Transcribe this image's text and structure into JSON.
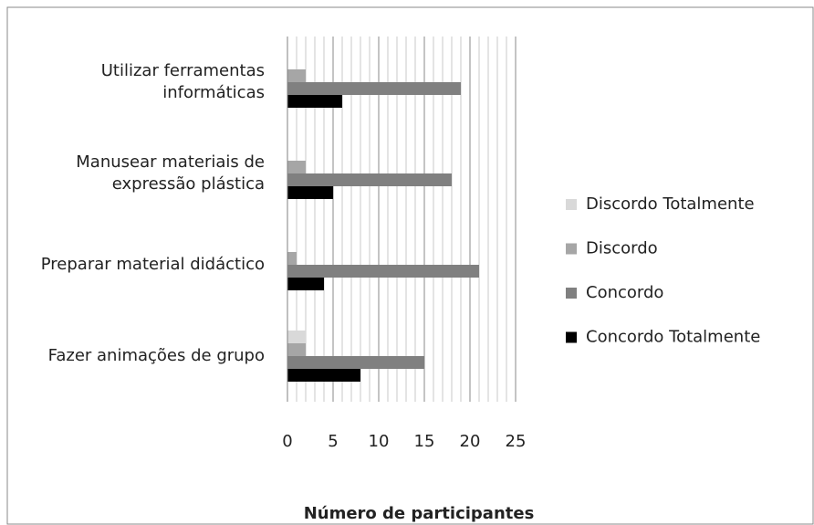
{
  "chart_data": {
    "type": "hbar",
    "categories": [
      "Utilizar ferramentas informáticas",
      "Manusear materiais de expressão plástica",
      "Preparar material didáctico",
      "Fazer animações de grupo"
    ],
    "series": [
      {
        "name": "Discordo Totalmente",
        "color": "#d9d9d9",
        "values": [
          0,
          0,
          0,
          2
        ]
      },
      {
        "name": "Discordo",
        "color": "#a6a6a6",
        "values": [
          2,
          2,
          1,
          2
        ]
      },
      {
        "name": "Concordo",
        "color": "#808080",
        "values": [
          19,
          18,
          21,
          15
        ]
      },
      {
        "name": "Concordo Totalmente",
        "color": "#000000",
        "values": [
          6,
          5,
          4,
          8
        ]
      }
    ],
    "xlabel": "Número de participantes",
    "xlim": [
      0,
      25
    ],
    "xticks": [
      0,
      5,
      10,
      15,
      20,
      25
    ],
    "grid": true,
    "minor_grid_step": 1,
    "legend": "right"
  }
}
